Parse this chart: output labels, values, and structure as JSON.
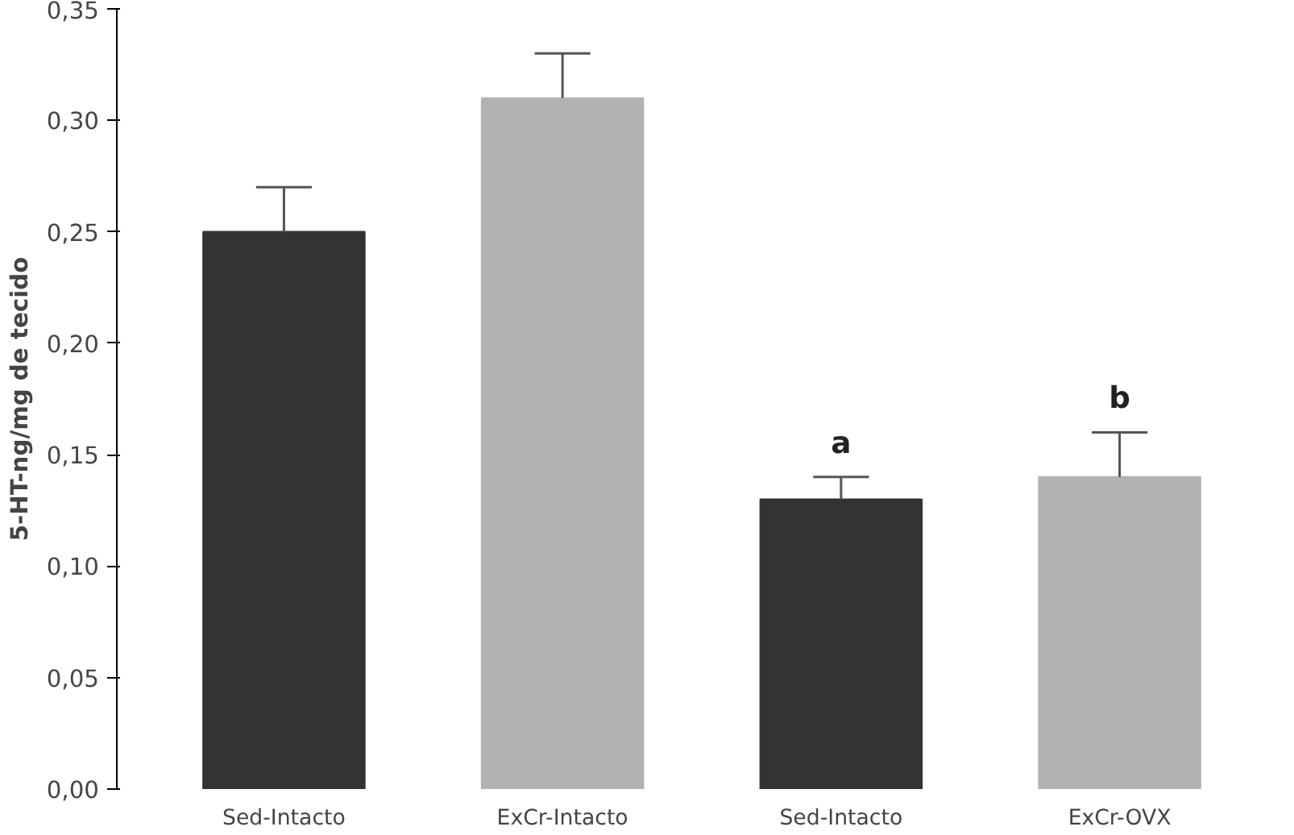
{
  "chart_data": {
    "type": "bar",
    "ylabel": "5-HT-ng/mg de tecido",
    "categories": [
      "Sed-Intacto",
      "ExCr-Intacto",
      "Sed-Intacto",
      "ExCr-OVX"
    ],
    "values": [
      0.25,
      0.31,
      0.13,
      0.14
    ],
    "colors": [
      "#333333",
      "#b2b2b2",
      "#333333",
      "#b2b2b2"
    ],
    "errors": [
      [
        0.25,
        0.27
      ],
      [
        0.31,
        0.33
      ],
      [
        0.13,
        0.14
      ],
      [
        0.14,
        0.16
      ]
    ],
    "annotations": [
      "a",
      "b"
    ],
    "ylim": [
      0,
      0.35
    ],
    "yticks": [
      {
        "value": 0,
        "label": "0,00"
      },
      {
        "value": 0.05,
        "label": "0,05"
      },
      {
        "value": 0.1,
        "label": "0,10"
      },
      {
        "value": 0.15,
        "label": "0,15"
      },
      {
        "value": 0.2,
        "label": "0,20"
      },
      {
        "value": 0.25,
        "label": "0,25"
      },
      {
        "value": 0.3,
        "label": "0,30"
      },
      {
        "value": 0.35,
        "label": "0,35"
      }
    ],
    "grid": false
  }
}
